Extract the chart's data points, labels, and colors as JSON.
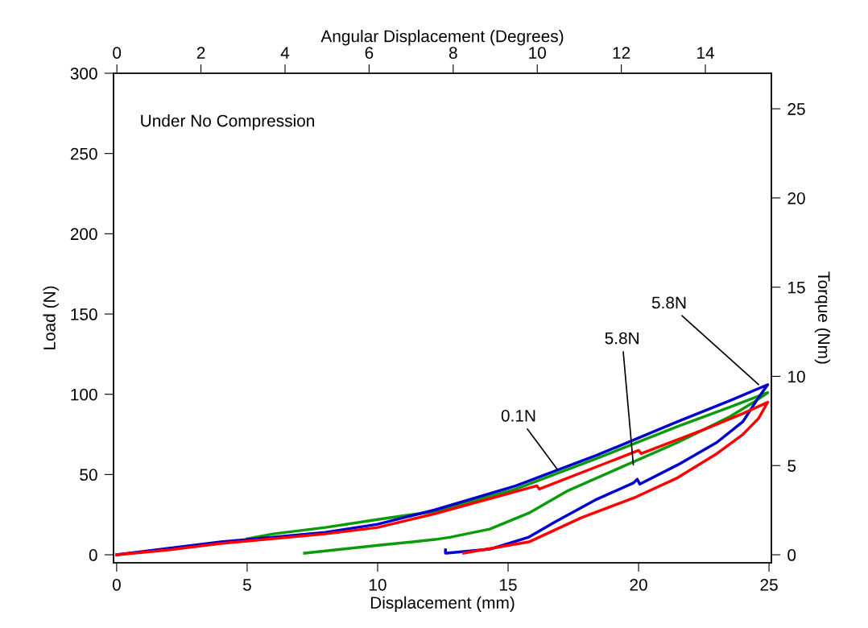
{
  "chart_data": {
    "type": "line",
    "title": "Under No Compression",
    "xlabel": "Displacement (mm)",
    "ylabel": "Load (N)",
    "y2label": "Torque (Nm)",
    "x2label": "Angular Displacement (Degrees)",
    "xlim": [
      -0.12,
      25.09
    ],
    "xticks": [
      0,
      5,
      10,
      15,
      20,
      25
    ],
    "ylim": [
      -5,
      300
    ],
    "yticks": [
      0,
      50,
      100,
      150,
      200,
      250,
      300
    ],
    "x2lim": [
      -0.08,
      15.57
    ],
    "x2ticks": [
      0,
      2,
      4,
      6,
      8,
      10,
      12,
      14
    ],
    "y2lim": [
      -0.45,
      26.99
    ],
    "y2ticks": [
      0,
      5,
      10,
      15,
      20,
      25
    ],
    "grid": false,
    "marker": "none",
    "line_style": "solid",
    "series": [
      {
        "color": "#0a9a0a",
        "x": [
          5,
          6,
          8,
          10,
          11.3,
          12.2,
          15.3,
          18.4,
          21.5,
          23.5,
          24.95,
          24.5,
          23.5,
          21.5,
          19.4,
          17.3,
          15.8,
          14.3,
          12.8,
          12.2,
          10.1,
          7.2
        ],
        "values": [
          10,
          13,
          17,
          22,
          25,
          27,
          41,
          60,
          80,
          92,
          101,
          96,
          86,
          70,
          55,
          40,
          26,
          16,
          11,
          9.5,
          6,
          1
        ]
      },
      {
        "color": "#0000cc",
        "x": [
          0,
          2,
          4,
          6,
          8,
          10,
          12.2,
          15.3,
          18.4,
          21.5,
          23.5,
          24.95,
          24.6,
          24,
          23,
          21.5,
          20.05,
          19.95,
          19.8,
          18.4,
          16.8,
          15.8,
          14.3,
          12.65,
          12.6,
          12.6
        ],
        "values": [
          0,
          4,
          8,
          11,
          14,
          19,
          28,
          43,
          62,
          83,
          96,
          106,
          98,
          83,
          70,
          56,
          44,
          47,
          44.7,
          34.6,
          20.5,
          11,
          3.5,
          1,
          1,
          3
        ]
      },
      {
        "color": "#ff0000",
        "x": [
          0,
          2,
          4,
          6,
          8,
          10,
          12.2,
          16.1,
          16.2,
          20,
          20.1,
          22.5,
          24,
          24.95,
          24.6,
          24,
          23,
          21.5,
          19.9,
          17.8,
          15.8,
          13.3
        ],
        "values": [
          0,
          3,
          7,
          10,
          13,
          17,
          25.6,
          43,
          41,
          65,
          63,
          78,
          88,
          95,
          85,
          75,
          63,
          48,
          36,
          23,
          8,
          1
        ]
      }
    ],
    "annotations": [
      {
        "text": "0.1N",
        "x": 16.9,
        "y": 53
      },
      {
        "text": "5.8N",
        "x": 19.8,
        "y": 56
      },
      {
        "text": "5.8N",
        "x": 24.6,
        "y": 106
      }
    ]
  }
}
